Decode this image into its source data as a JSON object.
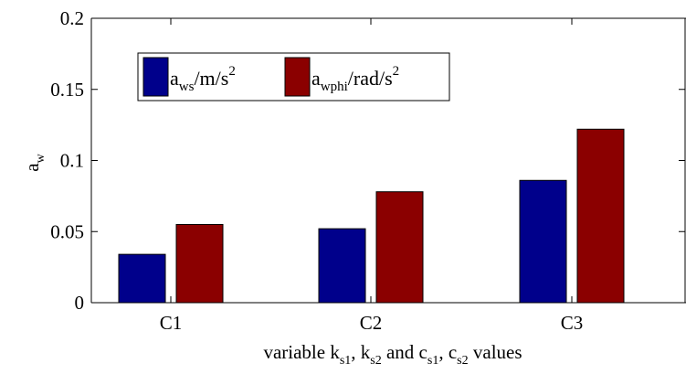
{
  "chart_data": {
    "type": "bar",
    "categories": [
      "C1",
      "C2",
      "C3"
    ],
    "series": [
      {
        "name": "a_ws/m/s^2",
        "values": [
          0.034,
          0.052,
          0.086
        ],
        "color": "#00008b"
      },
      {
        "name": "a_wphi/rad/s^2",
        "values": [
          0.055,
          0.078,
          0.122
        ],
        "color": "#8b0000"
      }
    ],
    "legend_parts": [
      {
        "main": "a",
        "sub": "ws",
        "rest": "/m/s",
        "sup": "2"
      },
      {
        "main": "a",
        "sub": "wphi",
        "rest": "/rad/s",
        "sup": "2"
      }
    ],
    "yticks": [
      "0",
      "0.05",
      "0.1",
      "0.15",
      "0.2"
    ],
    "ytick_values": [
      0,
      0.05,
      0.1,
      0.15,
      0.2
    ],
    "ylim": [
      0,
      0.2
    ],
    "ylabel": {
      "main": "a",
      "sub": "w"
    },
    "xlabel": {
      "p1": "variable k",
      "s1": "s1",
      "p2": ", k",
      "s2": "s2",
      "p3": " and c",
      "s3": "s1",
      "p4": ", c",
      "s4": "s2",
      "p5": " values"
    },
    "grid": false,
    "legend_position": "top-left"
  }
}
